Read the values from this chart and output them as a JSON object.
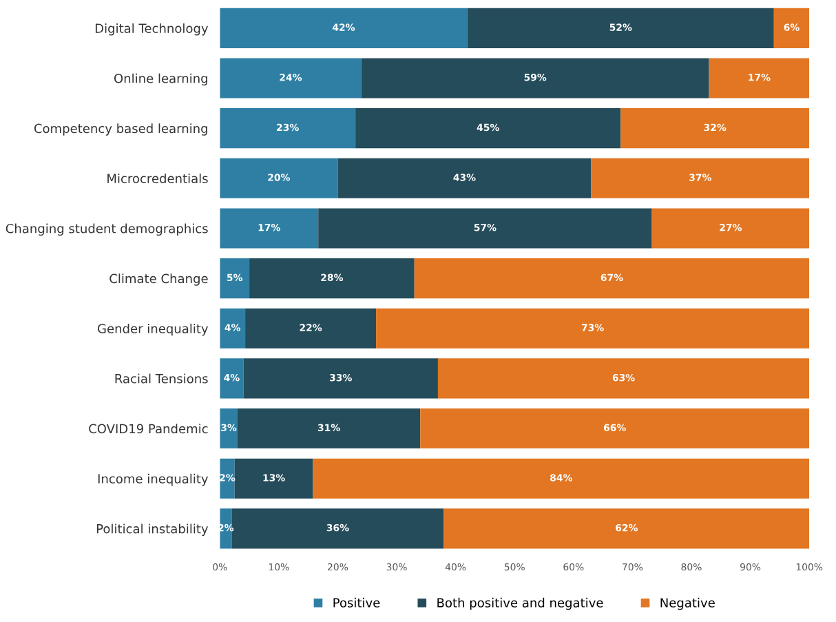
{
  "chart_data": {
    "type": "bar",
    "orientation": "horizontal",
    "stacked": true,
    "categories": [
      "Digital Technology",
      "Online learning",
      "Competency based learning",
      "Microcredentials",
      "Changing student demographics",
      "Climate Change",
      "Gender inequality",
      "Racial Tensions",
      "COVID19 Pandemic",
      "Income inequality",
      "Political instability"
    ],
    "series": [
      {
        "name": "Positive",
        "color": "#2e7fa3",
        "values": [
          42,
          24,
          23,
          20,
          16.7,
          5,
          4.3,
          4,
          3,
          2.5,
          2
        ],
        "value_labels": [
          "42%",
          "24%",
          "23%",
          "20%",
          "17%",
          "5%",
          "4%",
          "4%",
          "3%",
          "2%",
          "2%"
        ]
      },
      {
        "name": "Both positive and negative",
        "color": "#254c5a",
        "values": [
          52,
          59,
          45,
          43,
          56.6,
          28,
          22.2,
          33,
          31,
          13.3,
          36
        ],
        "value_labels": [
          "52%",
          "59%",
          "45%",
          "43%",
          "57%",
          "28%",
          "22%",
          "33%",
          "31%",
          "13%",
          "36%"
        ]
      },
      {
        "name": "Negative",
        "color": "#e27622",
        "values": [
          6,
          17,
          32,
          37,
          26.7,
          67,
          73.5,
          63,
          66,
          84.2,
          62
        ],
        "value_labels": [
          "6%",
          "17%",
          "32%",
          "37%",
          "27%",
          "67%",
          "73%",
          "63%",
          "66%",
          "84%",
          "62%"
        ]
      }
    ],
    "xlim": [
      0,
      100
    ],
    "xticks": [
      {
        "value": 0,
        "label": "0%"
      },
      {
        "value": 10,
        "label": "10%"
      },
      {
        "value": 20,
        "label": "20%"
      },
      {
        "value": 30,
        "label": "30%"
      },
      {
        "value": 40,
        "label": "40%"
      },
      {
        "value": 50,
        "label": "50%"
      },
      {
        "value": 60,
        "label": "60%"
      },
      {
        "value": 70,
        "label": "70%"
      },
      {
        "value": 80,
        "label": "80%"
      },
      {
        "value": 90,
        "label": "90%"
      },
      {
        "value": 100,
        "label": "100%"
      }
    ],
    "grid": false,
    "legend": "bottom"
  }
}
